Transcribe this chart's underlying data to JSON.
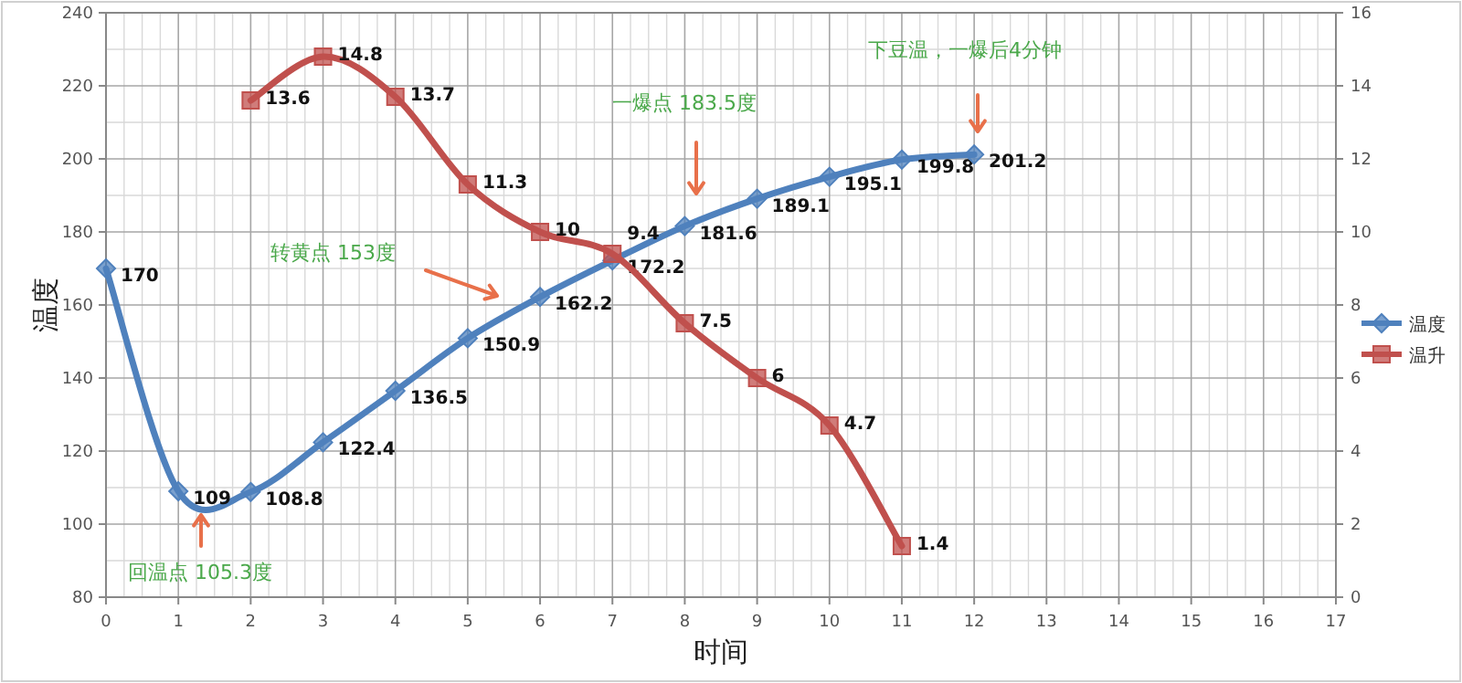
{
  "chart_data": {
    "type": "line",
    "xlabel": "时间",
    "ylabel": "温度",
    "x": [
      0,
      1,
      2,
      3,
      4,
      5,
      6,
      7,
      8,
      9,
      10,
      11,
      12
    ],
    "series": [
      {
        "name": "温度",
        "color": "#4f81bd",
        "marker": "diamond",
        "values": [
          170,
          109,
          108.8,
          122.4,
          136.5,
          150.9,
          162.2,
          172.2,
          181.6,
          189.1,
          195.1,
          199.8,
          201.2
        ]
      },
      {
        "name": "温升",
        "color": "#c0504d",
        "marker": "square",
        "axis": "y2",
        "values": [
          null,
          null,
          13.6,
          14.8,
          13.7,
          11.3,
          10,
          9.4,
          7.5,
          6,
          4.7,
          1.4,
          null
        ]
      }
    ],
    "xlim": [
      0,
      17
    ],
    "xticks": [
      0,
      1,
      2,
      3,
      4,
      5,
      6,
      7,
      8,
      9,
      10,
      11,
      12,
      13,
      14,
      15,
      16,
      17
    ],
    "ylim": [
      80,
      240
    ],
    "yticks": [
      80,
      100,
      120,
      140,
      160,
      180,
      200,
      220,
      240
    ],
    "y2lim": [
      0,
      16
    ],
    "y2ticks": [
      0,
      2,
      4,
      6,
      8,
      10,
      12,
      14,
      16
    ],
    "grid": true,
    "legend": "right",
    "data_labels": true,
    "annotations": [
      "回温点 105.3度",
      "转黄点 153度",
      "一爆点 183.5度",
      "下豆温，一爆后4分钟"
    ]
  }
}
